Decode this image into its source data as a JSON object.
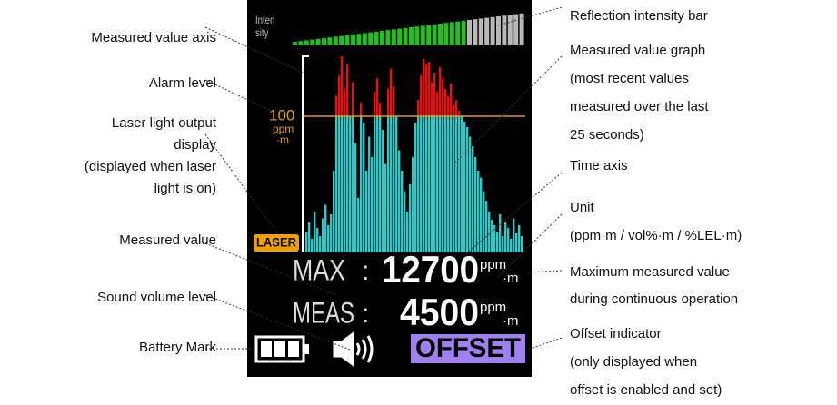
{
  "screen": {
    "intensity_label": [
      "Inten",
      "sity"
    ],
    "alarm_value": "100",
    "alarm_unit": [
      "ppm",
      "·m"
    ],
    "laser": "LASER",
    "max_label": "MAX",
    "separator": ":",
    "max_value": "12700",
    "meas_label": "MEAS",
    "meas_value": "4500",
    "unit": [
      "ppm",
      "·m"
    ],
    "offset": "OFFSET",
    "graph": {
      "alarm_level": 100,
      "values": [
        15,
        22,
        10,
        30,
        18,
        12,
        25,
        35,
        20,
        28,
        60,
        115,
        130,
        144,
        120,
        138,
        100,
        125,
        80,
        40,
        110,
        95,
        60,
        85,
        70,
        118,
        128,
        110,
        90,
        65,
        120,
        135,
        122,
        100,
        75,
        60,
        45,
        30,
        50,
        70,
        95,
        112,
        130,
        142,
        138,
        140,
        125,
        132,
        118,
        136,
        128,
        120,
        115,
        124,
        108,
        112,
        104,
        100,
        96,
        92,
        85,
        78,
        70,
        60,
        55,
        45,
        38,
        30,
        24,
        20,
        15,
        28,
        12,
        22,
        18,
        10,
        25,
        14,
        20,
        12
      ]
    }
  },
  "callouts_left": [
    {
      "lines": [
        "Measured value axis"
      ]
    },
    {
      "lines": [
        "Alarm level"
      ]
    },
    {
      "lines": [
        "Laser light output",
        "display",
        "(displayed when laser",
        "light is on)"
      ]
    },
    {
      "lines": [
        "Measured  value"
      ]
    },
    {
      "lines": [
        "Sound volume level"
      ]
    },
    {
      "lines": [
        "Battery Mark"
      ]
    }
  ],
  "callouts_right": [
    {
      "lines": [
        "Reflection intensity bar"
      ]
    },
    {
      "lines": [
        "Measured value graph",
        "(most recent values",
        "measured over the last",
        "25 seconds)"
      ]
    },
    {
      "lines": [
        "Time axis"
      ]
    },
    {
      "lines": [
        "Unit",
        "(ppm·m / vol%·m / %LEL·m)"
      ]
    },
    {
      "lines": [
        "Maximum measured value",
        "during continuous operation"
      ]
    },
    {
      "lines": [
        "Offset indicator",
        "(only    displayed    when",
        "offset is enabled and set)"
      ]
    }
  ]
}
